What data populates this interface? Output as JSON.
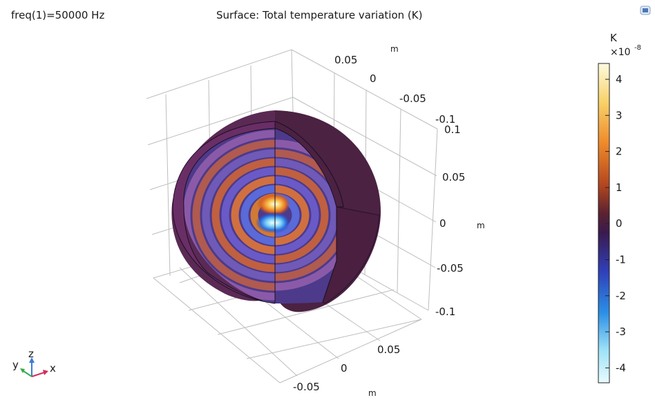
{
  "header": {
    "parameter": "freq(1)=50000 Hz",
    "title": "Surface: Total temperature variation (K)"
  },
  "axes3d": {
    "unit_label": "m",
    "top_ticks": [
      "0.05",
      "0",
      "-0.05",
      "-0.1"
    ],
    "right_ticks": [
      "0.1",
      "0.05",
      "0",
      "-0.05",
      "-0.1"
    ],
    "bottom_ticks": [
      "0.05",
      "0",
      "-0.05"
    ],
    "triad": {
      "x": "x",
      "y": "y",
      "z": "z"
    }
  },
  "colorbar": {
    "unit": "K",
    "exponent": "×10",
    "exponent_power": "-8",
    "ticks": [
      "4",
      "3",
      "2",
      "1",
      "0",
      "-1",
      "-2",
      "-3",
      "-4"
    ],
    "stops": [
      "#fdfbe0",
      "#f8d26a",
      "#ee8a2a",
      "#b3461f",
      "#5a2230",
      "#3a1a4e",
      "#2f3fb8",
      "#2b8fe6",
      "#9fe3f7",
      "#e8fbff"
    ]
  },
  "chart_data": {
    "type": "heatmap",
    "title": "Surface: Total temperature variation (K)",
    "subtitle": "freq(1)=50000 Hz",
    "xlabel": "m",
    "ylabel": "m",
    "zlabel": "m",
    "color_range": [
      -4.4e-08,
      4.4e-08
    ],
    "colorbar_ticks": [
      -4,
      -3,
      -2,
      -1,
      0,
      1,
      2,
      3,
      4
    ],
    "colorbar_unit": "K ×10^-8"
  }
}
